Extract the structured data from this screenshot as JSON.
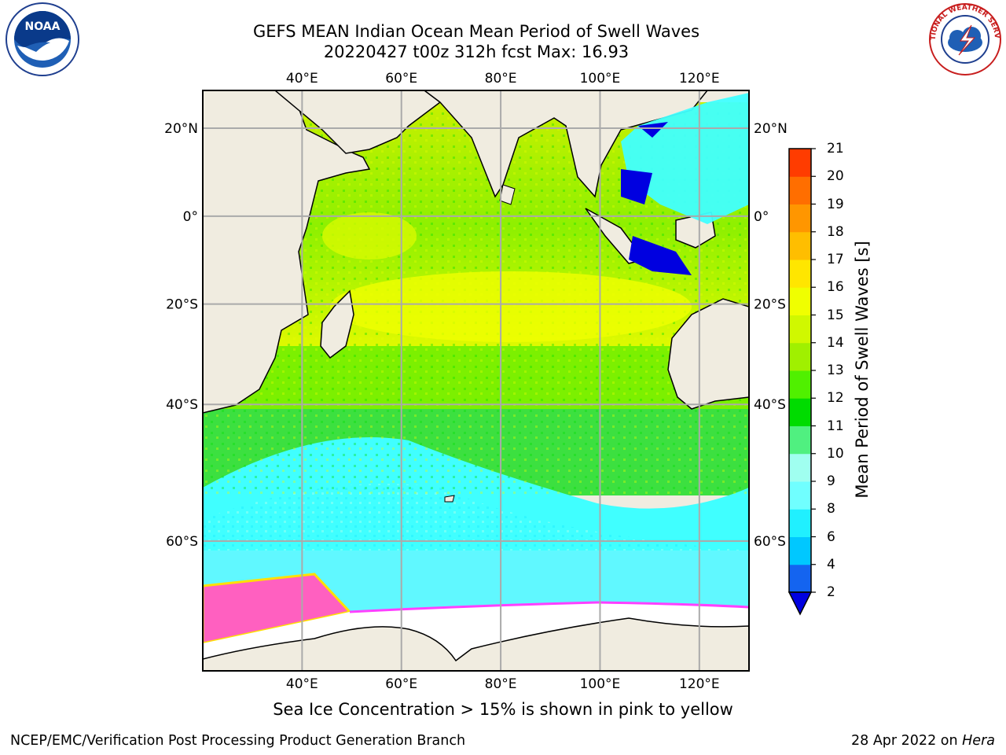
{
  "title_line1": "GEFS MEAN Indian Ocean Mean Period of Swell Waves",
  "title_line2": "20220427 t00z 312h fcst   Max: 16.93",
  "logos": {
    "left": "NOAA",
    "right": "NATIONAL WEATHER SERVICE"
  },
  "map": {
    "lon_labels": [
      "40°E",
      "60°E",
      "80°E",
      "100°E",
      "120°E"
    ],
    "lat_labels": [
      "20°N",
      "0°",
      "20°S",
      "40°S",
      "60°S"
    ],
    "extent": {
      "lon": [
        20,
        130
      ],
      "lat": [
        -72,
        28
      ]
    }
  },
  "colorbar": {
    "title": "Mean Period of Swell Waves [s]",
    "ticks": [
      "2",
      "4",
      "6",
      "8",
      "9",
      "10",
      "11",
      "12",
      "13",
      "14",
      "15",
      "16",
      "17",
      "18",
      "19",
      "20",
      "21"
    ],
    "colors": [
      "#1464f0",
      "#00c8ff",
      "#20f0ff",
      "#70ffff",
      "#a0fff0",
      "#50f080",
      "#00dc00",
      "#50f000",
      "#a0f000",
      "#d0f800",
      "#f0ff00",
      "#ffe600",
      "#ffbe00",
      "#ff9600",
      "#ff6e00",
      "#ff3c00",
      "#ff0000"
    ],
    "under_color": "#0000e0"
  },
  "note": "Sea Ice Concentration > 15% is shown in pink to yellow",
  "footer_left": "NCEP/EMC/Verification Post Processing Product Generation Branch",
  "footer_date": "28 Apr 2022 on ",
  "footer_machine": "Hera"
}
